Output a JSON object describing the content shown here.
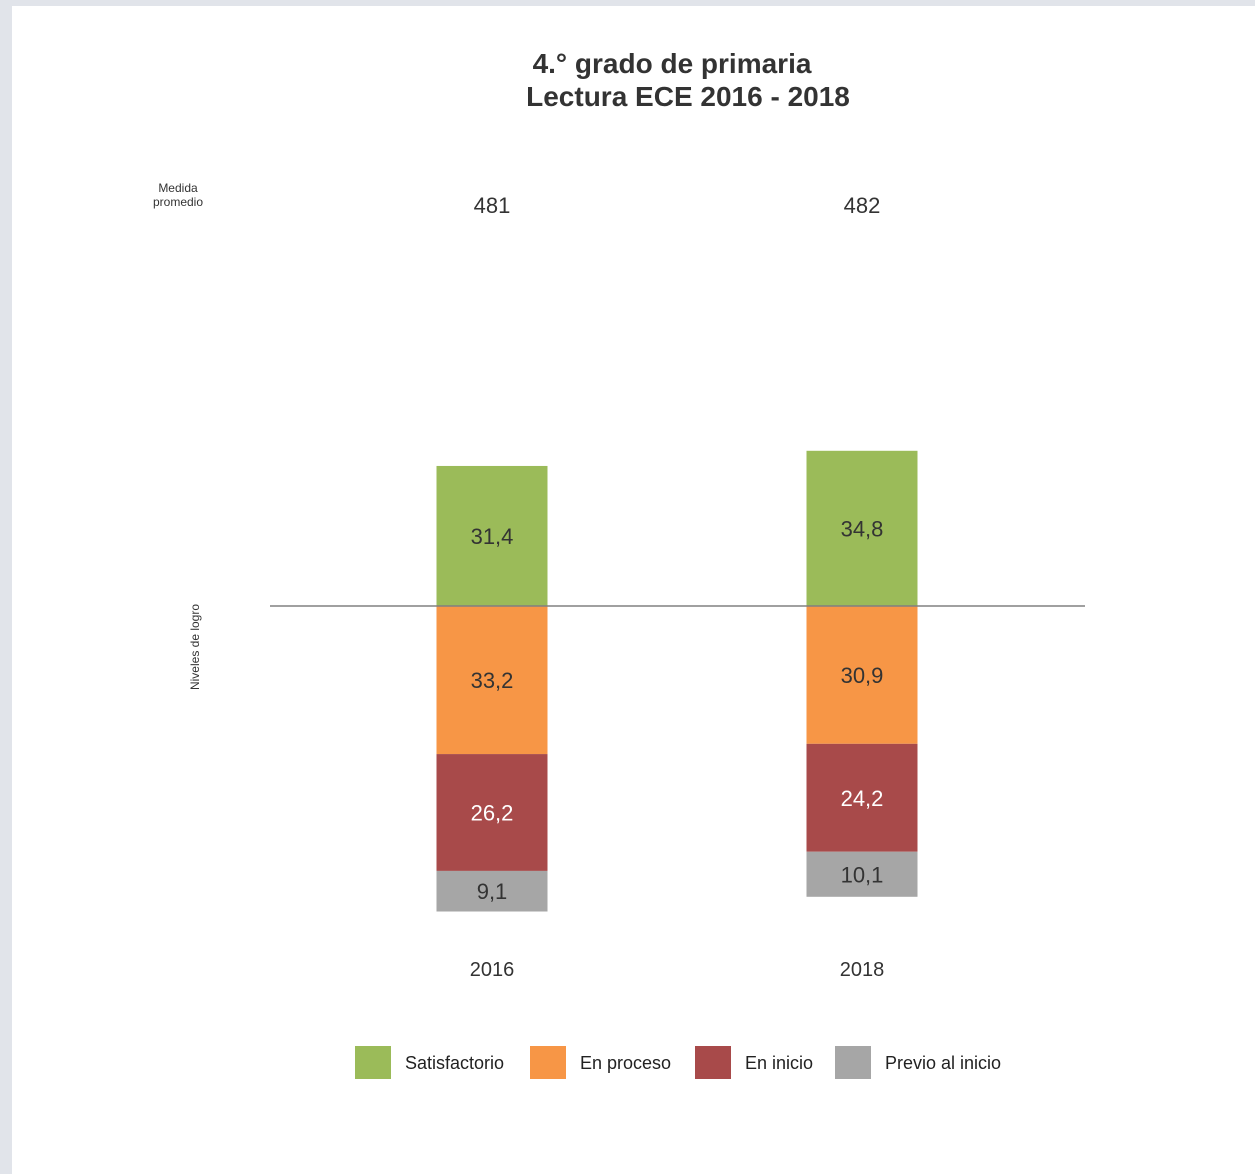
{
  "chart_data": {
    "type": "bar",
    "subtype": "stacked-diverging",
    "title": "4.° grado de primaria",
    "subtitle": "Lectura ECE 2016 - 2018",
    "mean_label": "Medida promedio",
    "mean_label_lines": [
      "Medida",
      "promedio"
    ],
    "axis_label": "Niveles de logro",
    "categories": [
      "2016",
      "2018"
    ],
    "means": [
      "481",
      "482"
    ],
    "series": [
      {
        "name": "Satisfactorio",
        "color": "#9bbb59",
        "text_color": "#333333",
        "values": [
          31.4,
          34.8
        ],
        "labels": [
          "31,4",
          "34,8"
        ],
        "side": "above"
      },
      {
        "name": "En proceso",
        "color": "#f79646",
        "text_color": "#333333",
        "values": [
          33.2,
          30.9
        ],
        "labels": [
          "33,2",
          "30,9"
        ],
        "side": "below"
      },
      {
        "name": "En inicio",
        "color": "#a84a4a",
        "text_color": "#ffffff",
        "values": [
          26.2,
          24.2
        ],
        "labels": [
          "26,2",
          "24,2"
        ],
        "side": "below"
      },
      {
        "name": "Previo al inicio",
        "color": "#a6a6a6",
        "text_color": "#333333",
        "values": [
          9.1,
          10.1
        ],
        "labels": [
          "9,1",
          "10,1"
        ],
        "side": "below"
      }
    ],
    "legend_position": "bottom",
    "grid": false,
    "baseline_color": "#808080"
  }
}
